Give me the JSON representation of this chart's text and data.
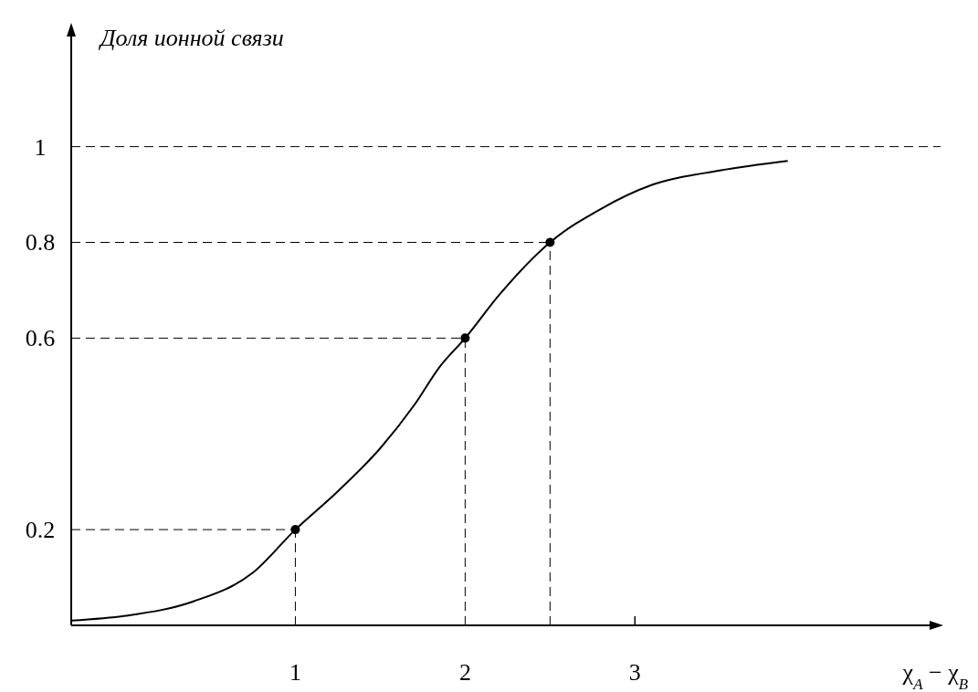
{
  "chart_data": {
    "type": "line",
    "ylabel": "Доля ионной связи",
    "xlabel": "χ$_{A}$ − χ$_{B}$",
    "xlim": [
      -0.32,
      4.8
    ],
    "xticks": [
      1,
      2,
      3
    ],
    "ylim": [
      0,
      1.23
    ],
    "yticks": [
      0.2,
      0.6,
      0.8,
      1
    ],
    "grid": false,
    "ref_lines": [
      {
        "axis": "y",
        "value": 1,
        "line_style": "dashed"
      }
    ],
    "series": [
      {
        "color": "#000000",
        "x": [
          -0.32,
          0,
          0.4,
          0.75,
          1,
          1.25,
          1.5,
          1.7,
          1.85,
          2,
          2.2,
          2.5,
          2.8,
          3.1,
          3.5,
          3.9
        ],
        "values": [
          0.01,
          0.02,
          0.05,
          0.11,
          0.2,
          0.28,
          0.37,
          0.46,
          0.54,
          0.6,
          0.69,
          0.8,
          0.87,
          0.92,
          0.95,
          0.97
        ]
      },
      {
        "line_style": "dashed",
        "color": "#000000",
        "x": [
          -0.32,
          1
        ],
        "values": [
          0.2,
          0.2
        ]
      },
      {
        "line_style": "dashed",
        "color": "#000000",
        "x": [
          1,
          1
        ],
        "values": [
          0,
          0.2
        ]
      },
      {
        "line_style": "dashed",
        "color": "#000000",
        "x": [
          -0.32,
          2
        ],
        "values": [
          0.6,
          0.6
        ]
      },
      {
        "line_style": "dashed",
        "color": "#000000",
        "x": [
          2,
          2
        ],
        "values": [
          0,
          0.6
        ]
      },
      {
        "line_style": "dashed",
        "color": "#000000",
        "x": [
          -0.32,
          2.5
        ],
        "values": [
          0.8,
          0.8
        ]
      },
      {
        "line_style": "dashed",
        "color": "#000000",
        "x": [
          2.5,
          2.5
        ],
        "values": [
          0,
          0.8
        ]
      },
      {
        "type": "scatter",
        "color": "#000000",
        "marker": "circle",
        "x": [
          1,
          2,
          2.5
        ],
        "values": [
          0.2,
          0.6,
          0.8
        ]
      }
    ]
  }
}
